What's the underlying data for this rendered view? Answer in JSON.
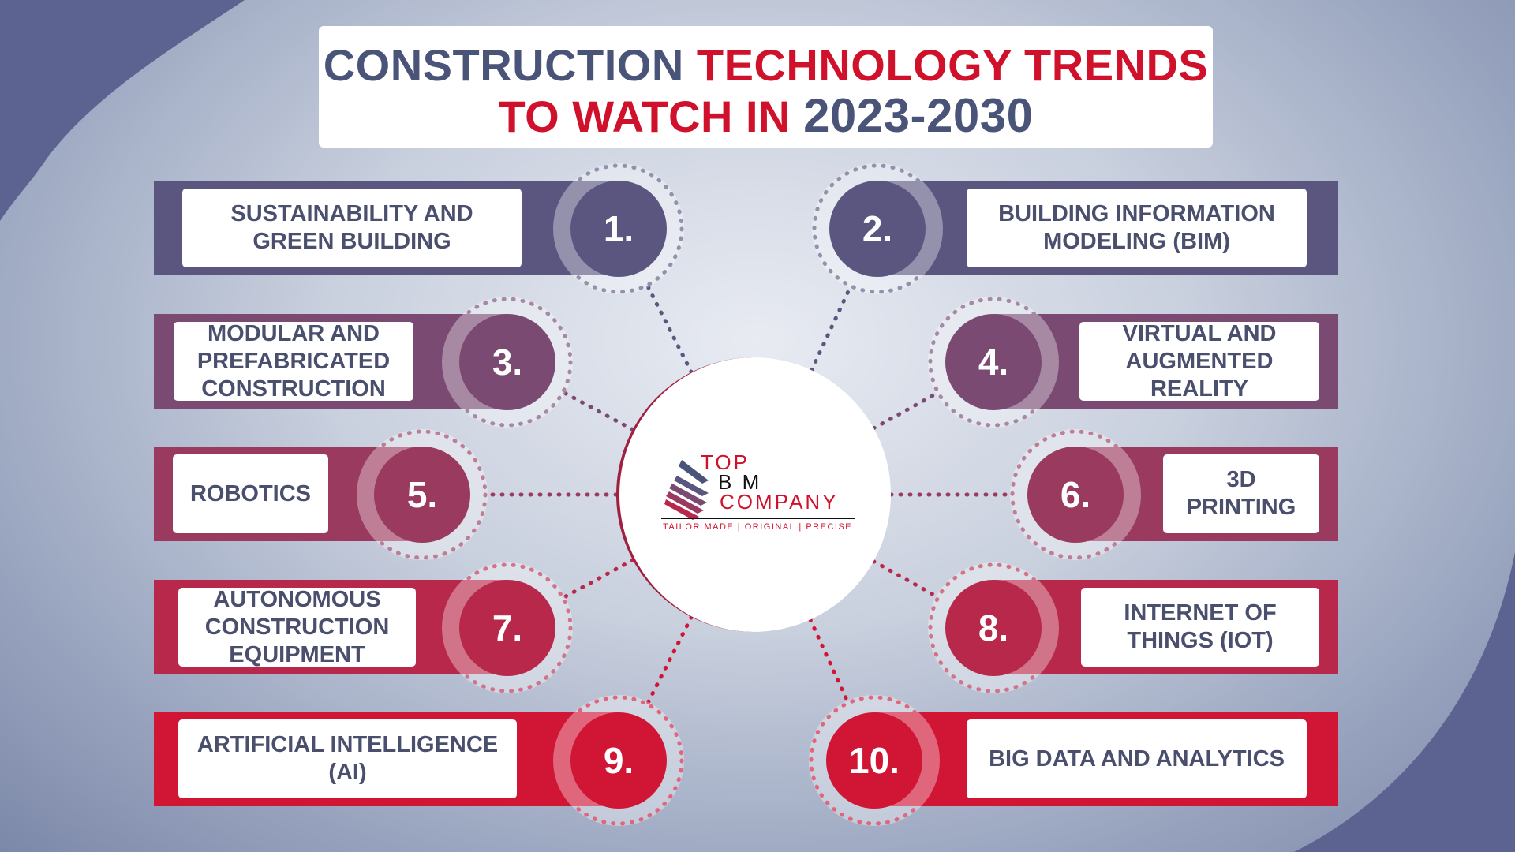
{
  "title": {
    "line1_part1": "CONSTRUCTION ",
    "line1_part2": "TECHNOLOGY TRENDS",
    "line2_part1": "TO WATCH IN ",
    "line2_part2": "2023-2030"
  },
  "colors": {
    "navy": "#4a5478",
    "red": "#d0112b",
    "purple": "#5b5680"
  },
  "logo": {
    "top": "TOP",
    "bim": "BIM",
    "company": "COMPANY",
    "tagline": "TAILOR MADE | ORIGINAL | PRECISE"
  },
  "trends": [
    {
      "number": "1.",
      "label": "SUSTAINABILITY AND GREEN BUILDING"
    },
    {
      "number": "2.",
      "label": "BUILDING INFORMATION MODELING (BIM)"
    },
    {
      "number": "3.",
      "label": "MODULAR AND PREFABRICATED CONSTRUCTION"
    },
    {
      "number": "4.",
      "label": "VIRTUAL AND AUGMENTED REALITY"
    },
    {
      "number": "5.",
      "label": "ROBOTICS"
    },
    {
      "number": "6.",
      "label": "3D PRINTING"
    },
    {
      "number": "7.",
      "label": "AUTONOMOUS CONSTRUCTION EQUIPMENT"
    },
    {
      "number": "8.",
      "label": "INTERNET OF THINGS (IOT)"
    },
    {
      "number": "9.",
      "label": "ARTIFICIAL INTELLIGENCE (AI)"
    },
    {
      "number": "10.",
      "label": "BIG DATA AND ANALYTICS"
    }
  ]
}
